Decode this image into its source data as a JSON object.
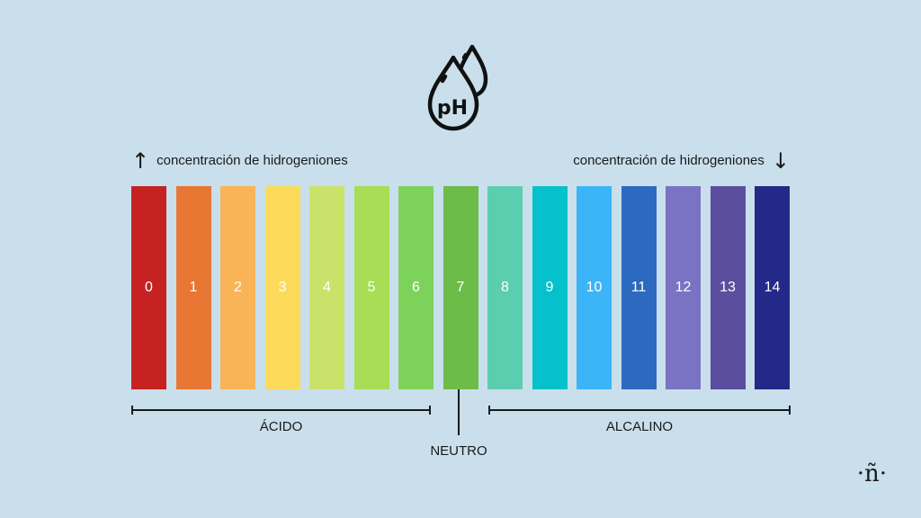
{
  "header": {
    "icon_name": "ph-drops-icon",
    "icon_text": "pH"
  },
  "labels": {
    "left_concentration": "concentración de hidrogeniones",
    "left_arrow": "↑",
    "right_concentration": "concentración de hidrogeniones",
    "right_arrow": "↓"
  },
  "scale": [
    {
      "value": "0",
      "color": "#c62222"
    },
    {
      "value": "1",
      "color": "#e87733"
    },
    {
      "value": "2",
      "color": "#fab458"
    },
    {
      "value": "3",
      "color": "#fddb5a"
    },
    {
      "value": "4",
      "color": "#cbe26a"
    },
    {
      "value": "5",
      "color": "#a8dd55"
    },
    {
      "value": "6",
      "color": "#7dd35a"
    },
    {
      "value": "7",
      "color": "#6cbc4a"
    },
    {
      "value": "8",
      "color": "#5cceb0"
    },
    {
      "value": "9",
      "color": "#05c1cb"
    },
    {
      "value": "10",
      "color": "#3bb4f8"
    },
    {
      "value": "11",
      "color": "#2c6ac0"
    },
    {
      "value": "12",
      "color": "#7a73c3"
    },
    {
      "value": "13",
      "color": "#5b4e9e"
    },
    {
      "value": "14",
      "color": "#242888"
    }
  ],
  "groups": {
    "acid": "ÁCIDO",
    "neutral": "NEUTRO",
    "alkaline": "ALCALINO"
  },
  "logo": {
    "text": "·ñ·"
  }
}
